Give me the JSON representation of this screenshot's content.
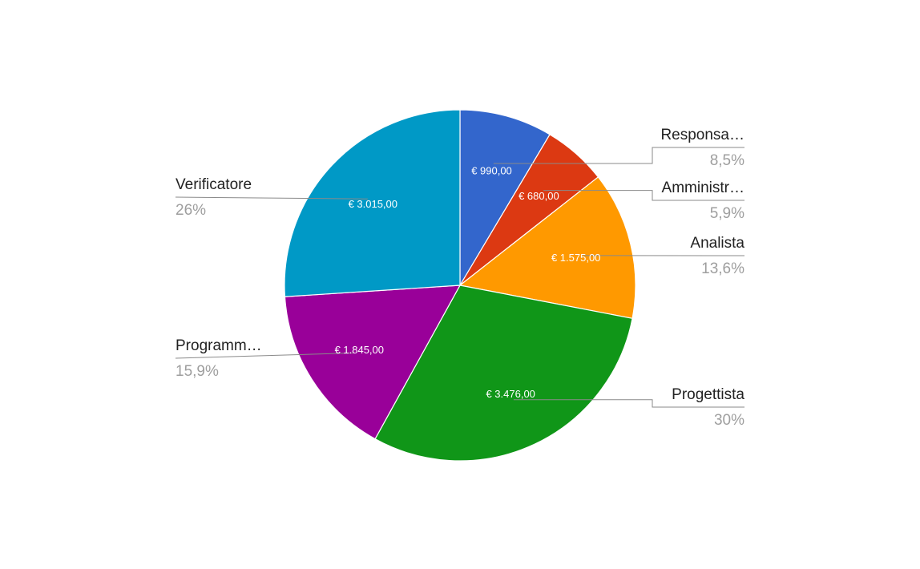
{
  "chart_data": {
    "type": "pie",
    "title": "",
    "slices": [
      {
        "label": "Responsa…",
        "value": 990,
        "value_label": "€ 990,00",
        "percent_label": "8,5%",
        "color": "#3366cc"
      },
      {
        "label": "Amministr…",
        "value": 680,
        "value_label": "€ 680,00",
        "percent_label": "5,9%",
        "color": "#dc3912"
      },
      {
        "label": "Analista",
        "value": 1575,
        "value_label": "€ 1.575,00",
        "percent_label": "13,6%",
        "color": "#ff9900"
      },
      {
        "label": "Progettista",
        "value": 3476,
        "value_label": "€ 3.476,00",
        "percent_label": "30%",
        "color": "#109618"
      },
      {
        "label": "Programm…",
        "value": 1845,
        "value_label": "€ 1.845,00",
        "percent_label": "15,9%",
        "color": "#990099"
      },
      {
        "label": "Verificatore",
        "value": 3015,
        "value_label": "€ 3.015,00",
        "percent_label": "26%",
        "color": "#0099c6"
      }
    ],
    "start_angle_deg": 0,
    "direction": "clockwise",
    "legend": "labeled",
    "grid": false
  }
}
